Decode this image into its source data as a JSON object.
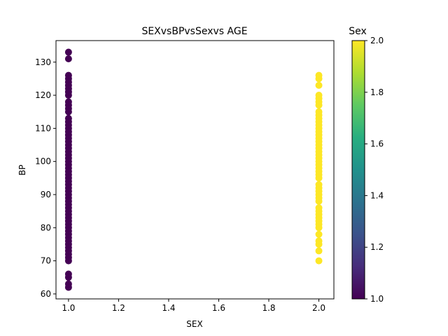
{
  "chart_data": {
    "type": "scatter",
    "title": "SEXvsBPvsSexvs AGE",
    "xlabel": "SEX",
    "ylabel": "BP",
    "xlim": [
      0.95,
      2.06
    ],
    "ylim": [
      58.5,
      136.5
    ],
    "xticks": [
      1.0,
      1.2,
      1.4,
      1.6,
      1.8,
      2.0
    ],
    "xtick_labels": [
      "1.0",
      "1.2",
      "1.4",
      "1.6",
      "1.8",
      "2.0"
    ],
    "yticks": [
      60,
      70,
      80,
      90,
      100,
      110,
      120,
      130
    ],
    "ytick_labels": [
      "60",
      "70",
      "80",
      "90",
      "100",
      "110",
      "120",
      "130"
    ],
    "grid": false,
    "colorbar": {
      "label": "Sex",
      "colormap": "viridis",
      "range": [
        1.0,
        2.0
      ],
      "ticks": [
        1.0,
        1.2,
        1.4,
        1.6,
        1.8,
        2.0
      ],
      "tick_labels": [
        "1.0",
        "1.2",
        "1.4",
        "1.6",
        "1.8",
        "2.0"
      ]
    },
    "series": [
      {
        "x": 1,
        "color": "#440154",
        "values": [
          62,
          63,
          65,
          66,
          70,
          71,
          72,
          73,
          74,
          75,
          76,
          77,
          78,
          79,
          80,
          81,
          82,
          83,
          84,
          85,
          86,
          87,
          88,
          89,
          90,
          91,
          92,
          93,
          94,
          95,
          96,
          97,
          98,
          99,
          100,
          101,
          102,
          103,
          104,
          105,
          106,
          107,
          108,
          109,
          110,
          111,
          112,
          113,
          115,
          116,
          117,
          118,
          120,
          121,
          122,
          123,
          124,
          125,
          126,
          131,
          133
        ]
      },
      {
        "x": 2,
        "color": "#fde725",
        "values": [
          70,
          73,
          75,
          76,
          78,
          80,
          81,
          82,
          83,
          84,
          85,
          86,
          88,
          89,
          90,
          91,
          92,
          93,
          95,
          96,
          97,
          98,
          99,
          100,
          101,
          102,
          103,
          104,
          105,
          106,
          107,
          108,
          109,
          110,
          111,
          112,
          113,
          114,
          115,
          117,
          118,
          119,
          120,
          123,
          125,
          126
        ]
      }
    ]
  }
}
